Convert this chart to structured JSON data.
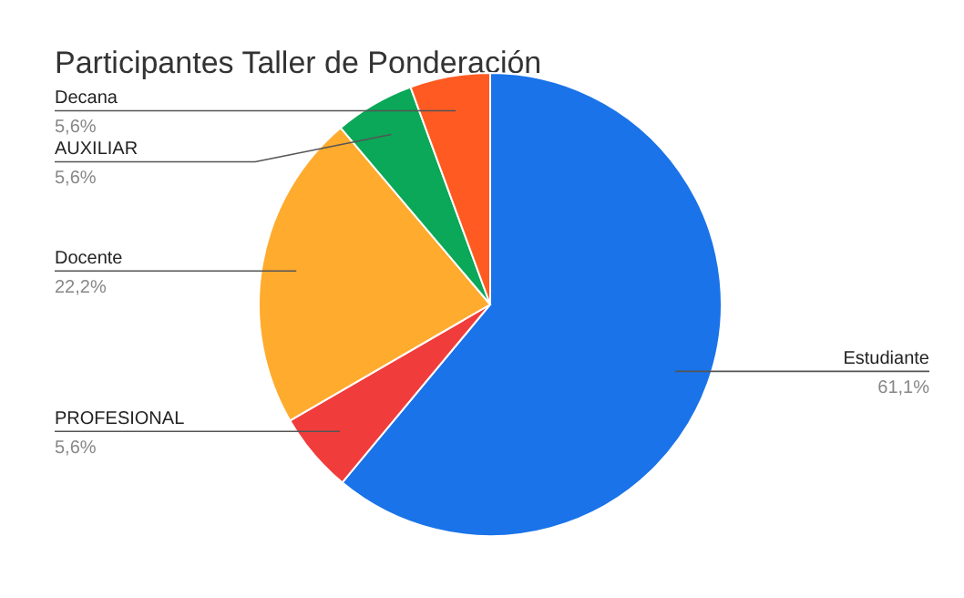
{
  "chart_data": {
    "type": "pie",
    "title": "Participantes Taller de Ponderación",
    "categories": [
      "Estudiante",
      "PROFESIONAL",
      "Docente",
      "AUXILIAR",
      "Decana"
    ],
    "values": [
      61.1,
      5.6,
      22.2,
      5.6,
      5.6
    ],
    "colors": [
      "#1a73e8",
      "#f13c3c",
      "#ffab2e",
      "#0aa858",
      "#ff5a22"
    ],
    "value_labels": [
      "61,1%",
      "5,6%",
      "22,2%",
      "5,6%",
      "5,6%"
    ]
  }
}
